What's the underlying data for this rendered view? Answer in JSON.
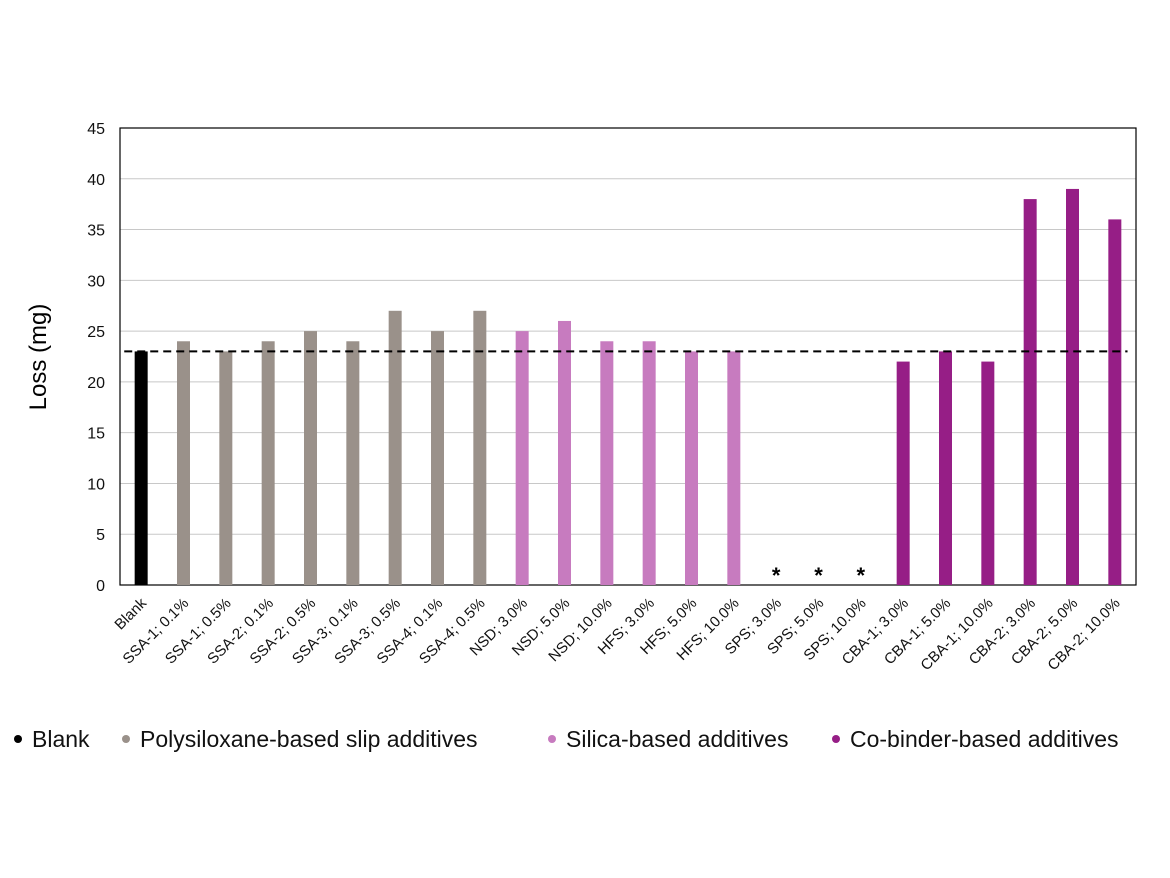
{
  "chart_data": {
    "type": "bar",
    "ylabel": "Loss (mg)",
    "ylim": [
      0,
      45
    ],
    "yticks": [
      0,
      5,
      10,
      15,
      20,
      25,
      30,
      35,
      40,
      45
    ],
    "grid": true,
    "legend_position": "bottom",
    "reference_line": {
      "value": 23,
      "style": "dashed"
    },
    "groups": [
      {
        "name": "Blank",
        "color": "#000000"
      },
      {
        "name": "Polysiloxane-based slip additives",
        "color": "#9a918a"
      },
      {
        "name": "Silica-based additives",
        "color": "#c77bbf"
      },
      {
        "name": "Co-binder-based additives",
        "color": "#961e86"
      }
    ],
    "categories": [
      "Blank",
      "SSA-1; 0.1%",
      "SSA-1; 0.5%",
      "SSA-2; 0.1%",
      "SSA-2; 0.5%",
      "SSA-3; 0.1%",
      "SSA-3; 0.5%",
      "SSA-4; 0.1%",
      "SSA-4; 0.5%",
      "NSD; 3.0%",
      "NSD; 5.0%",
      "NSD; 10.0%",
      "HFS; 3.0%",
      "HFS; 5.0%",
      "HFS; 10.0%",
      "SPS; 3.0%",
      "SPS; 5.0%",
      "SPS; 10.0%",
      "CBA-1; 3.0%",
      "CBA-1; 5.0%",
      "CBA-1; 10.0%",
      "CBA-2; 3.0%",
      "CBA-2; 5.0%",
      "CBA-2; 10.0%"
    ],
    "values": [
      23,
      24,
      23,
      24,
      25,
      24,
      27,
      25,
      27,
      25,
      26,
      24,
      24,
      23,
      23,
      null,
      null,
      null,
      22,
      23,
      22,
      38,
      39,
      36
    ],
    "group_index": [
      0,
      1,
      1,
      1,
      1,
      1,
      1,
      1,
      1,
      2,
      2,
      2,
      2,
      2,
      2,
      2,
      2,
      2,
      3,
      3,
      3,
      3,
      3,
      3
    ],
    "missing_marker": "*"
  }
}
